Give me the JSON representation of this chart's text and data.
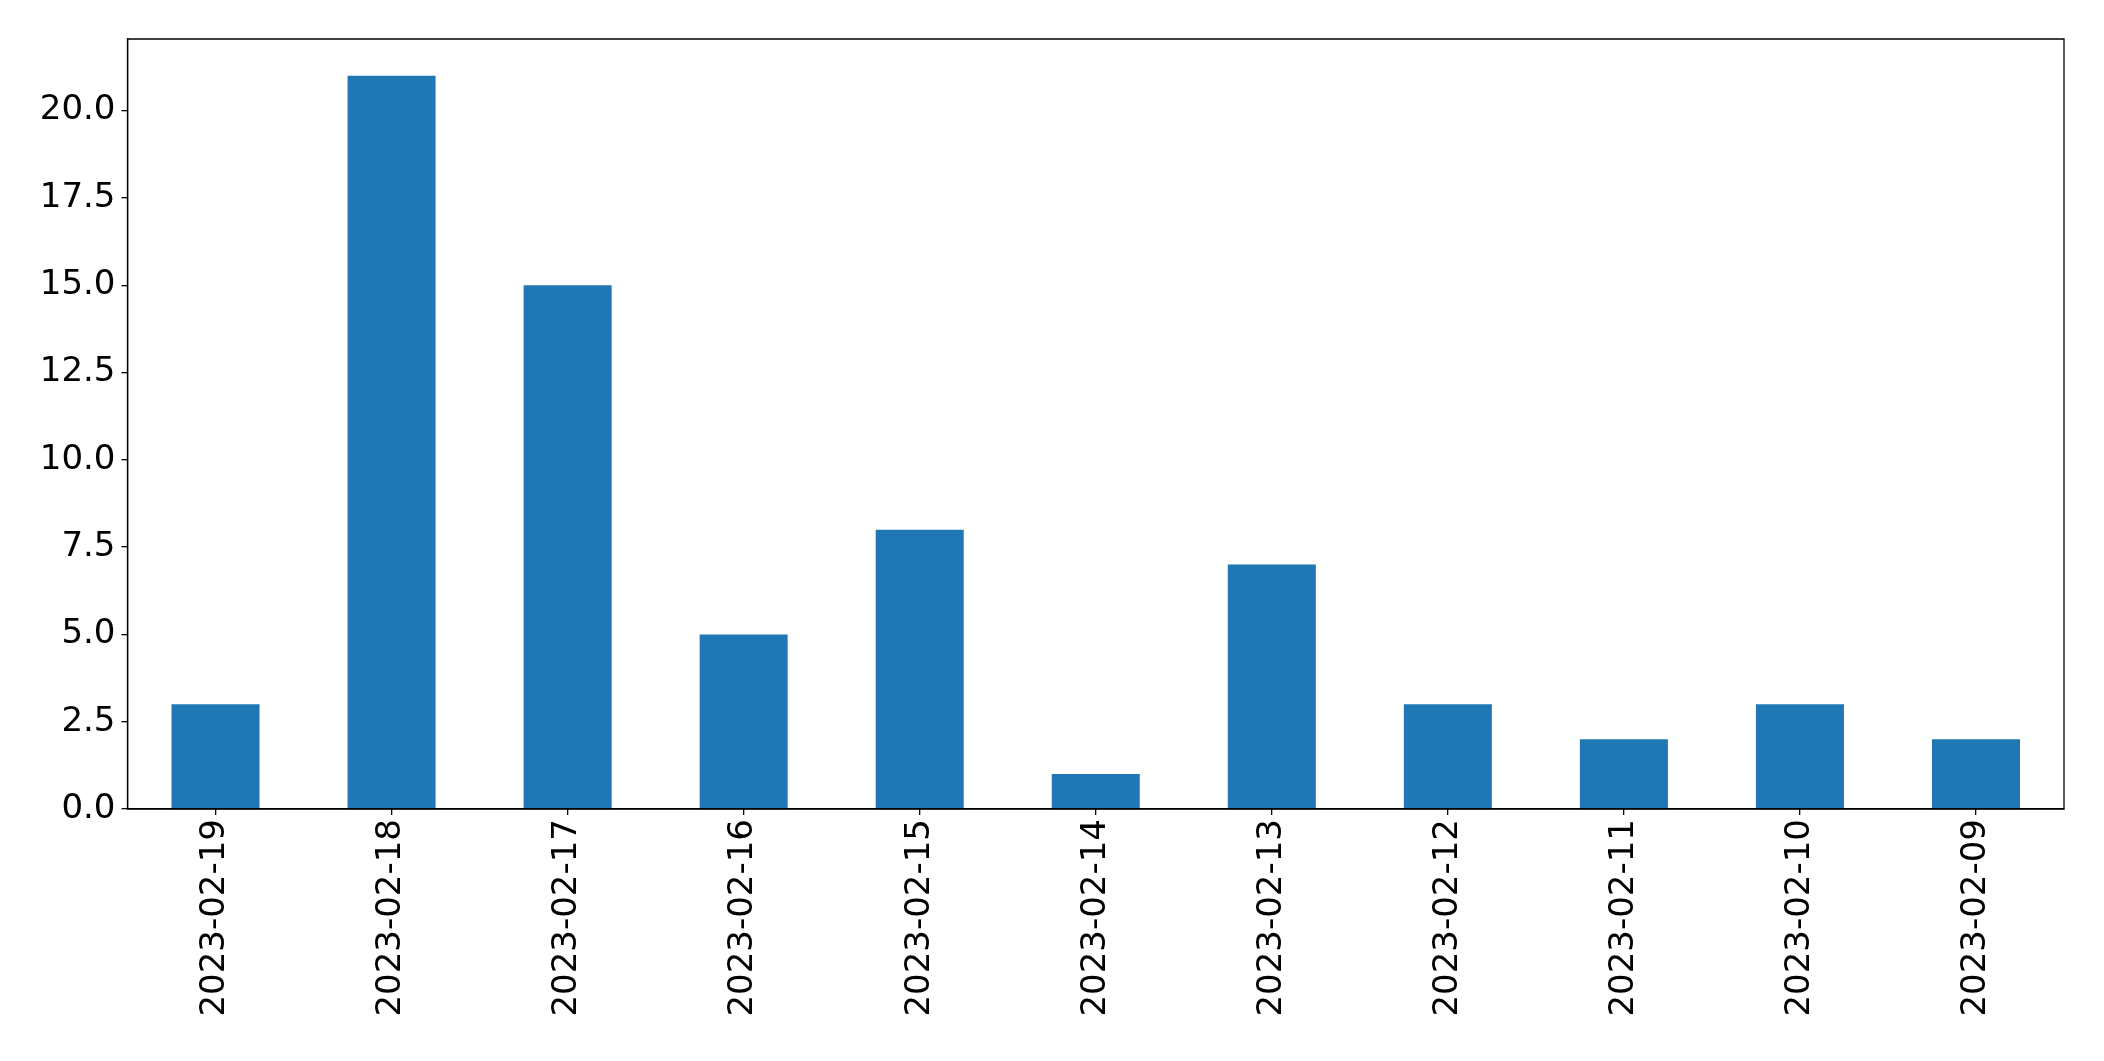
{
  "chart_data": {
    "type": "bar",
    "categories": [
      "2023-02-19",
      "2023-02-18",
      "2023-02-17",
      "2023-02-16",
      "2023-02-15",
      "2023-02-14",
      "2023-02-13",
      "2023-02-12",
      "2023-02-11",
      "2023-02-10",
      "2023-02-09"
    ],
    "values": [
      3,
      21,
      15,
      5,
      8,
      1,
      7,
      3,
      2,
      3,
      2
    ],
    "color": "#1f77b4",
    "ylim": [
      0,
      22.05
    ],
    "yticks": [
      {
        "value": 0,
        "label": "0.0"
      },
      2.5,
      {
        "value": 5,
        "label": "5.0"
      },
      7.5,
      {
        "value": 10,
        "label": "10.0"
      },
      12.5,
      {
        "value": 15,
        "label": "15.0"
      },
      17.5,
      {
        "value": 20,
        "label": "20.0"
      }
    ]
  }
}
